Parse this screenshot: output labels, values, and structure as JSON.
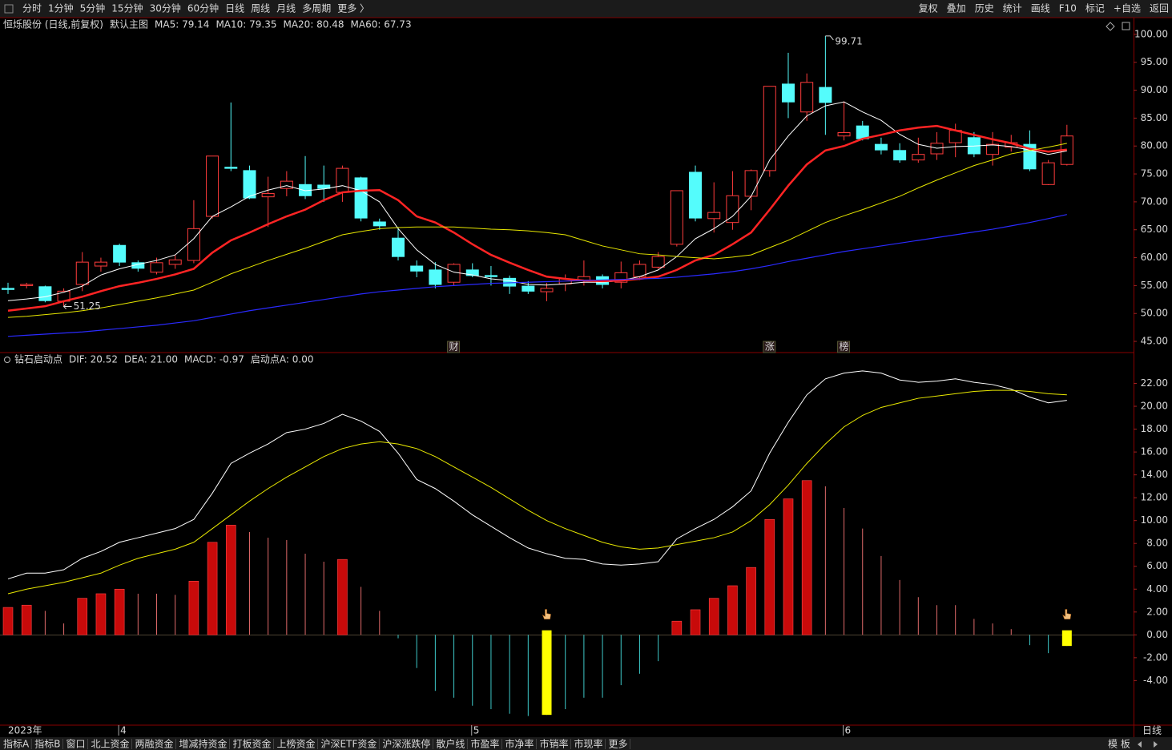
{
  "toolbar": {
    "left": [
      {
        "label": "分时"
      },
      {
        "label": "1分钟"
      },
      {
        "label": "5分钟"
      },
      {
        "label": "15分钟"
      },
      {
        "label": "30分钟"
      },
      {
        "label": "60分钟"
      },
      {
        "label": "日线",
        "color": "#ff3333"
      },
      {
        "label": "周线"
      },
      {
        "label": "月线"
      },
      {
        "label": "多周期"
      },
      {
        "label": "更多 〉"
      }
    ],
    "right": [
      "复权",
      "叠加",
      "历史",
      "统计",
      "画线",
      "F10",
      "标记",
      "+自选",
      "返回"
    ]
  },
  "chart_data": [
    {
      "type": "candlestick",
      "title": "恒烁股份 (日线,前复权)",
      "subtitle": "默认主图",
      "categories": [
        "2023年",
        null,
        null,
        null,
        null,
        null,
        "4",
        null,
        null,
        null,
        null,
        null,
        null,
        null,
        null,
        null,
        null,
        null,
        null,
        null,
        null,
        null,
        null,
        null,
        null,
        "5",
        null,
        null,
        null,
        null,
        null,
        null,
        null,
        null,
        null,
        null,
        null,
        null,
        null,
        null,
        null,
        null,
        null,
        null,
        null,
        "6",
        null,
        null,
        null,
        null,
        null,
        null,
        null,
        null,
        null,
        null,
        null,
        null
      ],
      "open": [
        54.5,
        55.0,
        54.8,
        52.2,
        55.2,
        58.5,
        62.2,
        59.1,
        57.4,
        58.8,
        59.5,
        67.4,
        76.2,
        75.6,
        70.9,
        72.4,
        73.1,
        73.0,
        71.7,
        74.3,
        66.4,
        63.5,
        58.5,
        57.8,
        55.6,
        57.8,
        56.8,
        56.3,
        54.9,
        53.9,
        55.3,
        55.9,
        56.6,
        55.6,
        56.6,
        58.3,
        62.4,
        75.3,
        67.0,
        66.3,
        71.0,
        75.6,
        91.1,
        86.1,
        90.5,
        81.8,
        83.6,
        80.3,
        79.2,
        77.5,
        78.6,
        80.6,
        81.5,
        78.5,
        79.8,
        80.3,
        73.1,
        76.7
      ],
      "high": [
        55.5,
        55.5,
        55.0,
        54.5,
        61.0,
        60.0,
        62.5,
        59.5,
        60.0,
        60.5,
        70.3,
        78.2,
        87.8,
        76.5,
        74.5,
        75.5,
        78.2,
        76.5,
        76.5,
        74.5,
        67.0,
        65.5,
        59.5,
        59.2,
        59.0,
        59.0,
        58.5,
        56.8,
        55.8,
        55.5,
        57.0,
        59.5,
        57.0,
        59.3,
        59.5,
        61.0,
        72.0,
        76.5,
        73.5,
        75.5,
        75.8,
        90.7,
        96.7,
        93.0,
        99.71,
        88.0,
        84.5,
        81.5,
        80.5,
        81.5,
        82.5,
        84.0,
        82.5,
        82.5,
        82.0,
        82.8,
        77.5,
        83.8
      ],
      "low": [
        53.5,
        54.5,
        52.0,
        51.25,
        54.0,
        57.5,
        58.5,
        57.5,
        57.0,
        58.0,
        59.0,
        67.0,
        75.5,
        70.5,
        65.5,
        71.0,
        70.5,
        70.0,
        70.0,
        66.5,
        65.0,
        59.5,
        56.5,
        54.5,
        55.0,
        56.5,
        55.0,
        53.5,
        53.5,
        52.2,
        54.0,
        55.0,
        54.5,
        54.5,
        56.0,
        58.0,
        62.0,
        66.5,
        64.5,
        65.0,
        68.5,
        74.5,
        85.0,
        84.5,
        82.0,
        81.0,
        81.0,
        78.5,
        77.0,
        77.0,
        77.5,
        78.0,
        78.0,
        76.5,
        79.0,
        75.5,
        73.0,
        76.5
      ],
      "close": [
        54.3,
        55.2,
        52.3,
        54.0,
        59.2,
        59.2,
        59.2,
        58.1,
        59.1,
        59.6,
        65.2,
        78.2,
        76.0,
        70.7,
        71.5,
        73.7,
        71.1,
        72.4,
        76.0,
        67.1,
        65.7,
        60.2,
        57.6,
        55.2,
        58.8,
        56.8,
        56.6,
        54.9,
        54.0,
        54.5,
        56.2,
        56.6,
        55.2,
        57.3,
        58.8,
        60.2,
        72.0,
        67.1,
        68.1,
        71.1,
        75.6,
        90.7,
        87.9,
        91.4,
        87.8,
        82.4,
        81.3,
        79.3,
        77.5,
        78.5,
        80.5,
        82.8,
        78.6,
        80.3,
        80.6,
        75.9,
        77.0,
        81.8
      ],
      "up_color": "#ff3c3c",
      "down_color": "#54fcfc",
      "series": [
        {
          "type": "line",
          "name": "MA5: 79.14",
          "color": "#ffffff",
          "line_width": 1,
          "values": [
            52.3,
            52.6,
            53,
            53.8,
            54.9,
            56.9,
            58,
            58.8,
            59.5,
            60.5,
            63.4,
            67.4,
            69.1,
            71,
            72.1,
            72.9,
            72,
            72.3,
            72.9,
            72,
            70,
            65.2,
            61.4,
            58.8,
            57.4,
            56.9,
            56.2,
            55.9,
            55.2,
            55.1,
            55.3,
            55.6,
            55.6,
            55.9,
            56.6,
            57.8,
            60.2,
            63.4,
            65.2,
            67.4,
            71,
            77.5,
            81.8,
            85.4,
            87.2,
            87.9,
            86.1,
            84.6,
            82.1,
            80.3,
            79.6,
            79.9,
            80,
            80.2,
            79.9,
            79.3,
            78.5,
            79.14
          ]
        },
        {
          "type": "line",
          "name": "MA10: 79.35",
          "color": "#ff2424",
          "line_width": 2.5,
          "values": [
            50.5,
            50.9,
            51.3,
            52.2,
            53,
            54,
            54.9,
            55.5,
            56.2,
            57,
            58,
            60.9,
            63.1,
            64.5,
            66,
            67.4,
            68.6,
            70.3,
            71.7,
            72,
            72.1,
            70.3,
            67.4,
            66.3,
            64.5,
            62.4,
            60.5,
            59.1,
            57.8,
            56.6,
            56.2,
            55.9,
            55.8,
            55.9,
            56.2,
            56.6,
            57.8,
            59.5,
            60.5,
            62.4,
            64.5,
            68.6,
            72.9,
            76.7,
            79.2,
            80,
            81.3,
            82,
            82.8,
            83.3,
            83.6,
            82.8,
            82,
            81.2,
            80.5,
            79.5,
            79,
            79.35
          ]
        },
        {
          "type": "line",
          "name": "MA20: 80.48",
          "color": "#e6e600",
          "line_width": 1,
          "values": [
            49.3,
            49.5,
            49.8,
            50.1,
            50.5,
            51,
            51.6,
            52.2,
            52.8,
            53.5,
            54.2,
            55.6,
            57.1,
            58.3,
            59.5,
            60.6,
            61.7,
            62.9,
            64.1,
            64.7,
            65.2,
            65.4,
            65.5,
            65.5,
            65.5,
            65.3,
            65.1,
            65,
            64.8,
            64.5,
            64.1,
            63.1,
            62.1,
            61.4,
            60.7,
            60.5,
            60.2,
            60,
            59.8,
            60.1,
            60.5,
            61.8,
            63.1,
            64.7,
            66.3,
            67.5,
            68.6,
            69.8,
            71,
            72.5,
            73.9,
            75.2,
            76.5,
            77.5,
            78.6,
            79.2,
            79.8,
            80.48
          ]
        },
        {
          "type": "line",
          "name": "MA60: 67.73",
          "color": "#2a2aff",
          "line_width": 1.2,
          "values": [
            45.9,
            46.1,
            46.3,
            46.5,
            46.7,
            47,
            47.3,
            47.6,
            47.9,
            48.3,
            48.7,
            49.3,
            49.9,
            50.5,
            51,
            51.5,
            52,
            52.5,
            53,
            53.5,
            53.9,
            54.2,
            54.5,
            54.8,
            55,
            55.2,
            55.4,
            55.5,
            55.6,
            55.7,
            55.8,
            55.9,
            56,
            56.1,
            56.2,
            56.3,
            56.5,
            56.8,
            57.1,
            57.5,
            58,
            58.6,
            59.3,
            59.9,
            60.5,
            61.1,
            61.6,
            62.1,
            62.6,
            63.1,
            63.6,
            64.1,
            64.6,
            65.1,
            65.7,
            66.3,
            67,
            67.73
          ]
        }
      ],
      "event_labels": [
        null,
        null,
        null,
        null,
        null,
        null,
        null,
        null,
        null,
        null,
        null,
        null,
        null,
        null,
        null,
        null,
        null,
        null,
        null,
        null,
        null,
        null,
        null,
        null,
        "财",
        null,
        null,
        null,
        null,
        null,
        null,
        null,
        null,
        null,
        null,
        null,
        null,
        null,
        null,
        null,
        null,
        "涨",
        null,
        null,
        null,
        "榜",
        null,
        null,
        null,
        null,
        null,
        null,
        null,
        null,
        null,
        null,
        null,
        null
      ],
      "ylim": [
        43,
        103
      ],
      "yticks": [
        {
          "value": 45,
          "label": "45.00"
        },
        {
          "value": 50,
          "label": "50.00"
        },
        {
          "value": 55,
          "label": "55.00"
        },
        {
          "value": 60,
          "label": "60.00"
        },
        {
          "value": 65,
          "label": "65.00"
        },
        {
          "value": 70,
          "label": "70.00"
        },
        {
          "value": 75,
          "label": "75.00"
        },
        {
          "value": 80,
          "label": "80.00"
        },
        {
          "value": 85,
          "label": "85.00"
        },
        {
          "value": 90,
          "label": "90.00"
        },
        {
          "value": 95,
          "label": "95.00"
        },
        {
          "value": 100,
          "label": "100.00"
        }
      ]
    },
    {
      "type": "macd",
      "title": "钻石启动点",
      "series": [
        {
          "type": "line",
          "name": "DIF: 20.52",
          "color": "#ffffff",
          "values": [
            4.9,
            5.4,
            5.4,
            5.7,
            6.7,
            7.3,
            8.1,
            8.5,
            8.9,
            9.3,
            10.1,
            12.4,
            15.0,
            15.9,
            16.7,
            17.7,
            18.0,
            18.5,
            19.3,
            18.7,
            17.8,
            15.9,
            13.6,
            12.8,
            11.7,
            10.5,
            9.5,
            8.5,
            7.6,
            7.1,
            6.7,
            6.6,
            6.2,
            6.1,
            6.2,
            6.4,
            8.4,
            9.3,
            10.1,
            11.2,
            12.6,
            15.9,
            18.6,
            21.0,
            22.4,
            22.9,
            23.1,
            22.9,
            22.3,
            22.1,
            22.2,
            22.4,
            22.1,
            21.9,
            21.5,
            20.8,
            20.3,
            20.52
          ]
        },
        {
          "type": "line",
          "name": "DEA: 21.00",
          "color": "#e8e800",
          "values": [
            3.6,
            4.0,
            4.3,
            4.6,
            5.0,
            5.4,
            6.1,
            6.7,
            7.1,
            7.5,
            8.1,
            9.3,
            10.5,
            11.7,
            12.8,
            13.8,
            14.7,
            15.6,
            16.3,
            16.7,
            16.9,
            16.7,
            16.3,
            15.6,
            14.7,
            13.8,
            12.9,
            11.9,
            10.9,
            10.0,
            9.3,
            8.7,
            8.1,
            7.7,
            7.5,
            7.6,
            7.9,
            8.2,
            8.5,
            9.0,
            10.0,
            11.4,
            13.1,
            15.0,
            16.7,
            18.2,
            19.2,
            19.9,
            20.3,
            20.7,
            20.9,
            21.1,
            21.3,
            21.4,
            21.4,
            21.3,
            21.1,
            21.0
          ]
        },
        {
          "type": "bar",
          "name": "MACD: -0.97",
          "color": "#ff00ff",
          "up_color": "#c80a0a",
          "down_color": "#3ec8c8",
          "values": [
            2.4,
            2.6,
            2.1,
            1.0,
            3.2,
            3.6,
            4.0,
            3.6,
            3.6,
            3.5,
            4.7,
            8.1,
            9.6,
            9.0,
            8.5,
            8.3,
            7.1,
            6.4,
            6.6,
            4.2,
            2.1,
            -0.3,
            -2.9,
            -4.9,
            -5.5,
            -6.2,
            -6.5,
            -6.9,
            -7.1,
            -7.0,
            -6.5,
            -5.5,
            -5.5,
            -4.4,
            -3.4,
            -2.3,
            1.2,
            2.2,
            3.2,
            4.3,
            5.9,
            10.1,
            11.9,
            13.5,
            13.0,
            11.1,
            9.3,
            6.9,
            4.8,
            3.3,
            2.6,
            2.6,
            1.4,
            1.0,
            0.5,
            -0.9,
            -1.6,
            -0.97
          ]
        },
        {
          "type": "signal",
          "name": "启动点A: 0.00",
          "color": "#ffff00",
          "values": [
            null,
            null,
            null,
            null,
            null,
            null,
            null,
            null,
            null,
            null,
            null,
            null,
            null,
            null,
            null,
            null,
            null,
            null,
            null,
            null,
            null,
            null,
            null,
            null,
            null,
            null,
            null,
            null,
            null,
            0.4,
            null,
            null,
            null,
            null,
            null,
            null,
            null,
            null,
            null,
            null,
            null,
            null,
            null,
            null,
            null,
            null,
            null,
            null,
            null,
            null,
            null,
            null,
            null,
            null,
            null,
            null,
            null,
            0.4
          ]
        }
      ],
      "ylim": [
        -7.9,
        24.7
      ],
      "yticks": [
        {
          "value": -4,
          "label": "-4.00"
        },
        {
          "value": -2,
          "label": "-2.00"
        },
        {
          "value": 0,
          "label": "0.00"
        },
        {
          "value": 2,
          "label": "2.00"
        },
        {
          "value": 4,
          "label": "4.00"
        },
        {
          "value": 6,
          "label": "6.00"
        },
        {
          "value": 8,
          "label": "8.00"
        },
        {
          "value": 10,
          "label": "10.00"
        },
        {
          "value": 12,
          "label": "12.00"
        },
        {
          "value": 14,
          "label": "14.00"
        },
        {
          "value": 16,
          "label": "16.00"
        },
        {
          "value": 18,
          "label": "18.00"
        },
        {
          "value": 20,
          "label": "20.00"
        },
        {
          "value": 22,
          "label": "22.00"
        }
      ]
    }
  ],
  "panel_label": "日线",
  "bottom_tabs": {
    "items": [
      {
        "label": "指标A"
      },
      {
        "label": "指标B"
      },
      {
        "label": "窗口"
      },
      {
        "label": "北上资金"
      },
      {
        "label": "两融资金"
      },
      {
        "label": "增减持资金"
      },
      {
        "label": "打板资金"
      },
      {
        "label": "上榜资金"
      },
      {
        "label": "沪深ETF资金"
      },
      {
        "label": "沪深涨跌停"
      },
      {
        "label": "散户线"
      },
      {
        "label": "市盈率"
      },
      {
        "label": "市净率"
      },
      {
        "label": "市销率"
      },
      {
        "label": "市现率"
      },
      {
        "label": "更多",
        "color": "#ff3333"
      }
    ],
    "right": "模 板"
  }
}
